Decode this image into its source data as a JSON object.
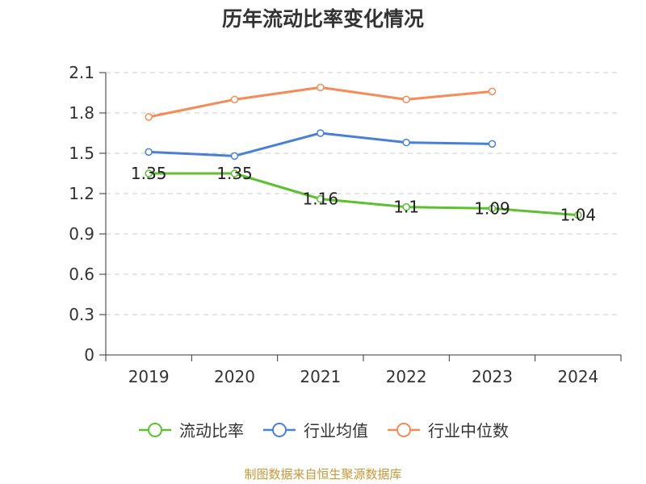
{
  "chart_data": {
    "type": "line",
    "title": "历年流动比率变化情况",
    "categories": [
      "2019",
      "2020",
      "2021",
      "2022",
      "2023",
      "2024"
    ],
    "y_ticks": [
      "0",
      "0.3",
      "0.6",
      "0.9",
      "1.2",
      "1.5",
      "1.8",
      "2.1"
    ],
    "ylim": [
      0,
      2.1
    ],
    "grid": true,
    "legend_position": "bottom",
    "series": [
      {
        "name": "流动比率",
        "color": "#5cc030",
        "values": [
          1.35,
          1.35,
          1.16,
          1.1,
          1.09,
          1.04
        ],
        "labels": [
          "1.35",
          "1.35",
          "1.16",
          "1.1",
          "1.09",
          "1.04"
        ]
      },
      {
        "name": "行业均值",
        "color": "#4a7fd8",
        "values": [
          1.51,
          1.48,
          1.65,
          1.58,
          1.57,
          null
        ]
      },
      {
        "name": "行业中位数",
        "color": "#f58b57",
        "values": [
          1.77,
          1.9,
          1.99,
          1.9,
          1.96,
          null
        ]
      }
    ]
  },
  "footer": {
    "source": "制图数据来自恒生聚源数据库"
  }
}
